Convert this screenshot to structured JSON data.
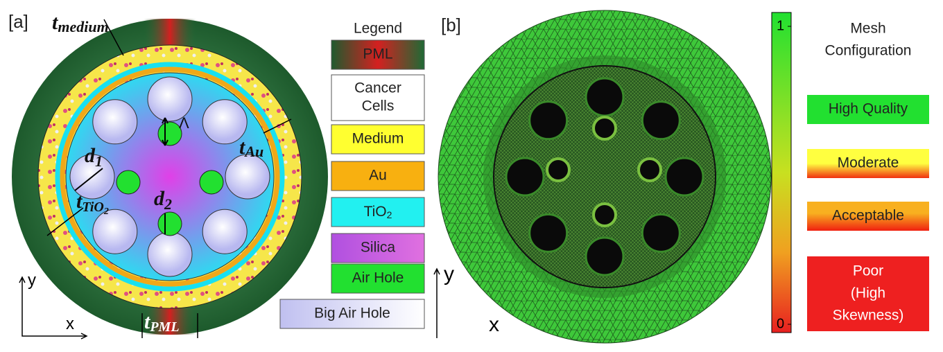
{
  "panel_a": {
    "tag": "[a]",
    "labels": {
      "t_medium": {
        "main": "t",
        "sub": "medium"
      },
      "lambda": "Λ",
      "t_au": {
        "main": "t",
        "sub": "Au"
      },
      "d1": {
        "main": "d",
        "sub": "1"
      },
      "d2": {
        "main": "d",
        "sub": "2"
      },
      "t_tio2": {
        "main": "t",
        "sub": "TiO",
        "subsub": "2"
      },
      "t_pml": {
        "main": "t",
        "sub": "PML"
      }
    },
    "axes": {
      "y": "y",
      "x": "x"
    },
    "legend": {
      "title": "Legend",
      "items": [
        "PML",
        [
          "Cancer",
          "Cells"
        ],
        "Medium",
        "Au",
        {
          "main": "TiO",
          "sub": "2"
        },
        "Silica",
        "Air Hole",
        "Big Air Hole"
      ]
    }
  },
  "panel_b": {
    "tag": "[b]",
    "axes": {
      "y": "y",
      "x": "x"
    },
    "colorbar": {
      "ticks": [
        0,
        1
      ]
    },
    "mesh_legend": {
      "title": [
        "Mesh",
        "Configuration"
      ],
      "items": [
        "High Quality",
        "Moderate",
        "Acceptable",
        [
          "Poor",
          "(High",
          "Skewness)"
        ]
      ]
    }
  }
}
